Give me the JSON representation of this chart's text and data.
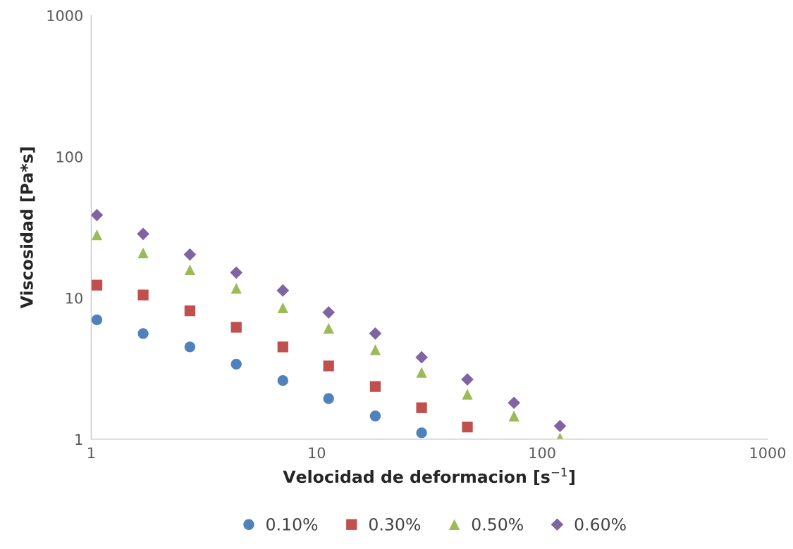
{
  "chart_data": {
    "type": "scatter",
    "xlabel": "Velocidad de deformacion [s$^{−1}$]",
    "ylabel": "Viscosidad [Pa*s]",
    "x": [
      1.06,
      1.7,
      2.74,
      4.4,
      7.08,
      11.3,
      18.2,
      29.2,
      46.6,
      75,
      120
    ],
    "series": [
      {
        "name": "0.10%",
        "color": "#4f81bd",
        "marker": "circle",
        "values": [
          7.0,
          5.6,
          4.5,
          3.4,
          2.6,
          1.94,
          1.46,
          1.11,
          null,
          null,
          null
        ]
      },
      {
        "name": "0.30%",
        "color": "#c0504d",
        "marker": "square",
        "values": [
          12.3,
          10.5,
          8.1,
          6.2,
          4.5,
          3.3,
          2.36,
          1.67,
          1.22,
          null,
          null
        ]
      },
      {
        "name": "0.50%",
        "color": "#9bbb59",
        "marker": "triangle",
        "values": [
          28,
          20.8,
          15.8,
          11.7,
          8.5,
          6.1,
          4.3,
          2.97,
          2.08,
          1.46,
          1.02
        ]
      },
      {
        "name": "0.60%",
        "color": "#8064a2",
        "marker": "diamond",
        "values": [
          38.6,
          28.4,
          20.3,
          15.1,
          11.3,
          7.9,
          5.6,
          3.8,
          2.65,
          1.81,
          1.24
        ]
      }
    ],
    "log": "xy",
    "xlim": [
      1,
      1000
    ],
    "ylim": [
      1,
      1000
    ],
    "xticks": [
      1,
      10,
      100,
      1000
    ],
    "yticks": [
      1,
      10,
      100,
      1000
    ],
    "grid": false,
    "legend": "bottom"
  }
}
